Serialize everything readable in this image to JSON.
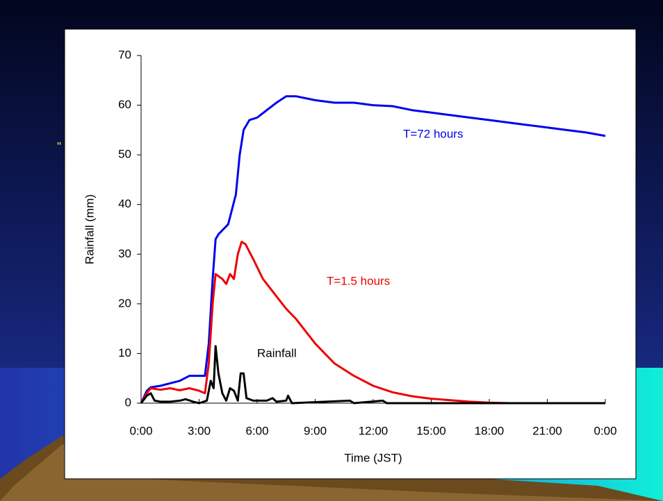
{
  "slide_text": "\"",
  "chart_data": {
    "type": "line",
    "xlabel": "Time (JST)",
    "ylabel": "Rainfall (mm)",
    "xlim": [
      0,
      24
    ],
    "xticks": [
      {
        "value": 0,
        "label": "0:00"
      },
      {
        "value": 3,
        "label": "3:00"
      },
      {
        "value": 6,
        "label": "6:00"
      },
      {
        "value": 9,
        "label": "9:00"
      },
      {
        "value": 12,
        "label": "12:00"
      },
      {
        "value": 15,
        "label": "15:00"
      },
      {
        "value": 18,
        "label": "18:00"
      },
      {
        "value": 21,
        "label": "21:00"
      },
      {
        "value": 24,
        "label": "0:00"
      }
    ],
    "ylim": [
      0,
      70
    ],
    "yticks": [
      0,
      10,
      20,
      30,
      40,
      50,
      60,
      70
    ],
    "annotations": [
      "T=72 hours",
      "T=1.5 hours",
      "Rainfall"
    ],
    "series": [
      {
        "name": "T=72 hours",
        "color": "#0000ee",
        "x": [
          0,
          0.3,
          0.5,
          1,
          2,
          2.5,
          3.3,
          3.5,
          3.7,
          3.85,
          4,
          4.5,
          4.9,
          5.1,
          5.3,
          5.6,
          6,
          6.5,
          7,
          7.5,
          8,
          9,
          10,
          11,
          12,
          13,
          14,
          15,
          16,
          17,
          18,
          19,
          20,
          21,
          22,
          23,
          24
        ],
        "values": [
          0,
          2.5,
          3.2,
          3.5,
          4.5,
          5.5,
          5.5,
          12,
          25,
          33,
          34,
          36,
          42,
          50,
          55,
          57,
          57.5,
          59,
          60.5,
          61.8,
          61.8,
          61,
          60.5,
          60.5,
          60,
          59.8,
          59,
          58.5,
          58,
          57.5,
          57,
          56.5,
          56,
          55.5,
          55,
          54.5,
          53.8
        ]
      },
      {
        "name": "T=1.5 hours",
        "color": "#ee0000",
        "x": [
          0,
          0.3,
          0.5,
          1,
          1.5,
          2,
          2.5,
          3,
          3.3,
          3.5,
          3.7,
          3.85,
          4.2,
          4.4,
          4.6,
          4.8,
          5,
          5.2,
          5.4,
          5.8,
          6.3,
          7,
          7.5,
          8,
          8.5,
          9,
          9.5,
          10,
          11,
          12,
          13,
          14,
          15,
          16,
          17,
          18,
          19,
          24
        ],
        "values": [
          0,
          2,
          3,
          2.7,
          3,
          2.6,
          3,
          2.5,
          2,
          8,
          20,
          26,
          25,
          24,
          26,
          25,
          30,
          32.5,
          32,
          29,
          25,
          21.5,
          19,
          17,
          14.5,
          12,
          10,
          8,
          5.5,
          3.5,
          2.2,
          1.4,
          0.9,
          0.6,
          0.3,
          0.1,
          0,
          0
        ]
      },
      {
        "name": "Rainfall",
        "color": "#000000",
        "x": [
          0,
          0.3,
          0.5,
          0.7,
          1,
          1.5,
          2,
          2.3,
          2.7,
          3,
          3.4,
          3.6,
          3.75,
          3.85,
          4,
          4.2,
          4.4,
          4.6,
          4.8,
          5,
          5.15,
          5.3,
          5.45,
          5.8,
          6.5,
          6.8,
          7,
          7.5,
          7.6,
          7.8,
          10.8,
          11,
          12.5,
          12.7,
          24
        ],
        "values": [
          0,
          1.5,
          2,
          0.5,
          0.3,
          0.3,
          0.5,
          0.8,
          0.3,
          0,
          0.5,
          4.5,
          3,
          11.5,
          6,
          2,
          0.5,
          3,
          2.5,
          0.5,
          6,
          6,
          1,
          0.5,
          0.5,
          1,
          0.3,
          0.5,
          1.5,
          0,
          0.5,
          0,
          0.5,
          0,
          0
        ]
      }
    ]
  }
}
